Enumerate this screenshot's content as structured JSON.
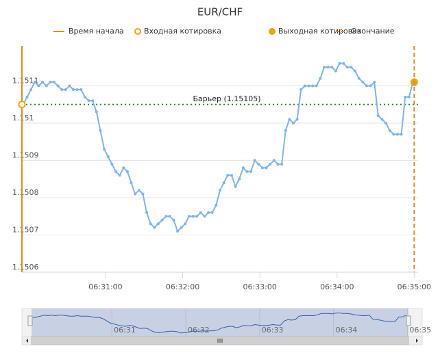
{
  "chart_data": {
    "type": "line",
    "title": "EUR/CHF",
    "x": [
      "06:29:56",
      "06:29:59",
      "06:30:02",
      "06:30:05",
      "06:30:08",
      "06:30:11",
      "06:30:14",
      "06:30:17",
      "06:30:20",
      "06:30:23",
      "06:30:26",
      "06:30:29",
      "06:30:32",
      "06:30:35",
      "06:30:38",
      "06:30:41",
      "06:30:44",
      "06:30:47",
      "06:30:50",
      "06:30:53",
      "06:30:56",
      "06:30:59",
      "06:31:02",
      "06:31:05",
      "06:31:08",
      "06:31:11",
      "06:31:14",
      "06:31:17",
      "06:31:20",
      "06:31:23",
      "06:31:26",
      "06:31:29",
      "06:31:32",
      "06:31:35",
      "06:31:38",
      "06:31:41",
      "06:31:44",
      "06:31:47",
      "06:31:50",
      "06:31:53",
      "06:31:56",
      "06:31:59",
      "06:32:02",
      "06:32:05",
      "06:32:08",
      "06:32:11",
      "06:32:14",
      "06:32:17",
      "06:32:20",
      "06:32:23",
      "06:32:26",
      "06:32:29",
      "06:32:32",
      "06:32:35",
      "06:32:38",
      "06:32:41",
      "06:32:44",
      "06:32:47",
      "06:32:50",
      "06:32:53",
      "06:32:56",
      "06:32:59",
      "06:33:02",
      "06:33:05",
      "06:33:08",
      "06:33:11",
      "06:33:14",
      "06:33:17",
      "06:33:20",
      "06:33:23",
      "06:33:26",
      "06:33:29",
      "06:33:32",
      "06:33:35",
      "06:33:38",
      "06:33:41",
      "06:33:44",
      "06:33:47",
      "06:33:50",
      "06:33:53",
      "06:33:56",
      "06:33:59",
      "06:34:02",
      "06:34:05",
      "06:34:08",
      "06:34:11",
      "06:34:14",
      "06:34:17",
      "06:34:20",
      "06:34:23",
      "06:34:26",
      "06:34:29",
      "06:34:32",
      "06:34:35",
      "06:34:38",
      "06:34:41",
      "06:34:44",
      "06:34:47",
      "06:34:50",
      "06:34:53",
      "06:34:56",
      "06:34:59"
    ],
    "series": [
      {
        "color": "#7cb5ec",
        "values": [
          1.15105,
          1.15107,
          1.15109,
          1.15111,
          1.1511,
          1.15111,
          1.1511,
          1.15111,
          1.15111,
          1.1511,
          1.15109,
          1.15109,
          1.1511,
          1.15109,
          1.15109,
          1.15109,
          1.15107,
          1.15106,
          1.15106,
          1.15103,
          1.15098,
          1.15093,
          1.15091,
          1.15089,
          1.15087,
          1.15086,
          1.15088,
          1.15087,
          1.15084,
          1.15081,
          1.15082,
          1.15081,
          1.15076,
          1.15073,
          1.15072,
          1.15073,
          1.15074,
          1.15075,
          1.15075,
          1.15074,
          1.15071,
          1.15072,
          1.15073,
          1.15075,
          1.15075,
          1.15075,
          1.15076,
          1.15075,
          1.15076,
          1.15076,
          1.15078,
          1.15082,
          1.15084,
          1.15086,
          1.15086,
          1.15083,
          1.15085,
          1.15088,
          1.15087,
          1.15087,
          1.1509,
          1.15089,
          1.15088,
          1.15088,
          1.15089,
          1.1509,
          1.15089,
          1.15089,
          1.15098,
          1.15101,
          1.151,
          1.15101,
          1.15109,
          1.1511,
          1.1511,
          1.1511,
          1.1511,
          1.15112,
          1.15115,
          1.15115,
          1.15115,
          1.15114,
          1.15116,
          1.15116,
          1.15115,
          1.15115,
          1.15114,
          1.15112,
          1.15111,
          1.1511,
          1.1511,
          1.15111,
          1.15102,
          1.15101,
          1.151,
          1.15098,
          1.15097,
          1.15097,
          1.15097,
          1.15107,
          1.15107,
          1.15111
        ]
      }
    ],
    "xlim": [
      "06:29:55",
      "06:35:03"
    ],
    "xticks": [
      "06:31:00",
      "06:32:00",
      "06:33:00",
      "06:34:00",
      "06:35:00"
    ],
    "ylim": [
      1.1506,
      1.1512
    ],
    "yticks": [
      1.1506,
      1.1507,
      1.1508,
      1.1509,
      1.151,
      1.1511
    ],
    "grid": true,
    "barrier": {
      "label": "Барьер (1.15105)",
      "value": 1.15105,
      "color": "#1f8a1f"
    },
    "markers": [
      {
        "name": "Время начала",
        "kind": "start-line",
        "x": "06:29:55",
        "color": "#e48a1e"
      },
      {
        "name": "Входная котировка",
        "kind": "entry",
        "x": "06:29:55",
        "value": 1.15105,
        "color": "#f0a30a"
      },
      {
        "name": "Выходная котировка",
        "kind": "exit",
        "x": "06:35:00",
        "value": 1.15111,
        "color": "#f0a30a"
      },
      {
        "name": "Окончание",
        "kind": "end-line",
        "x": "06:35:00",
        "color": "#e48a1e"
      }
    ],
    "navigator": {
      "xlim": [
        "06:29:47",
        "06:35:12"
      ],
      "xticks": [
        "06:31",
        "06:32",
        "06:33",
        "06:34",
        "06:35"
      ]
    }
  }
}
